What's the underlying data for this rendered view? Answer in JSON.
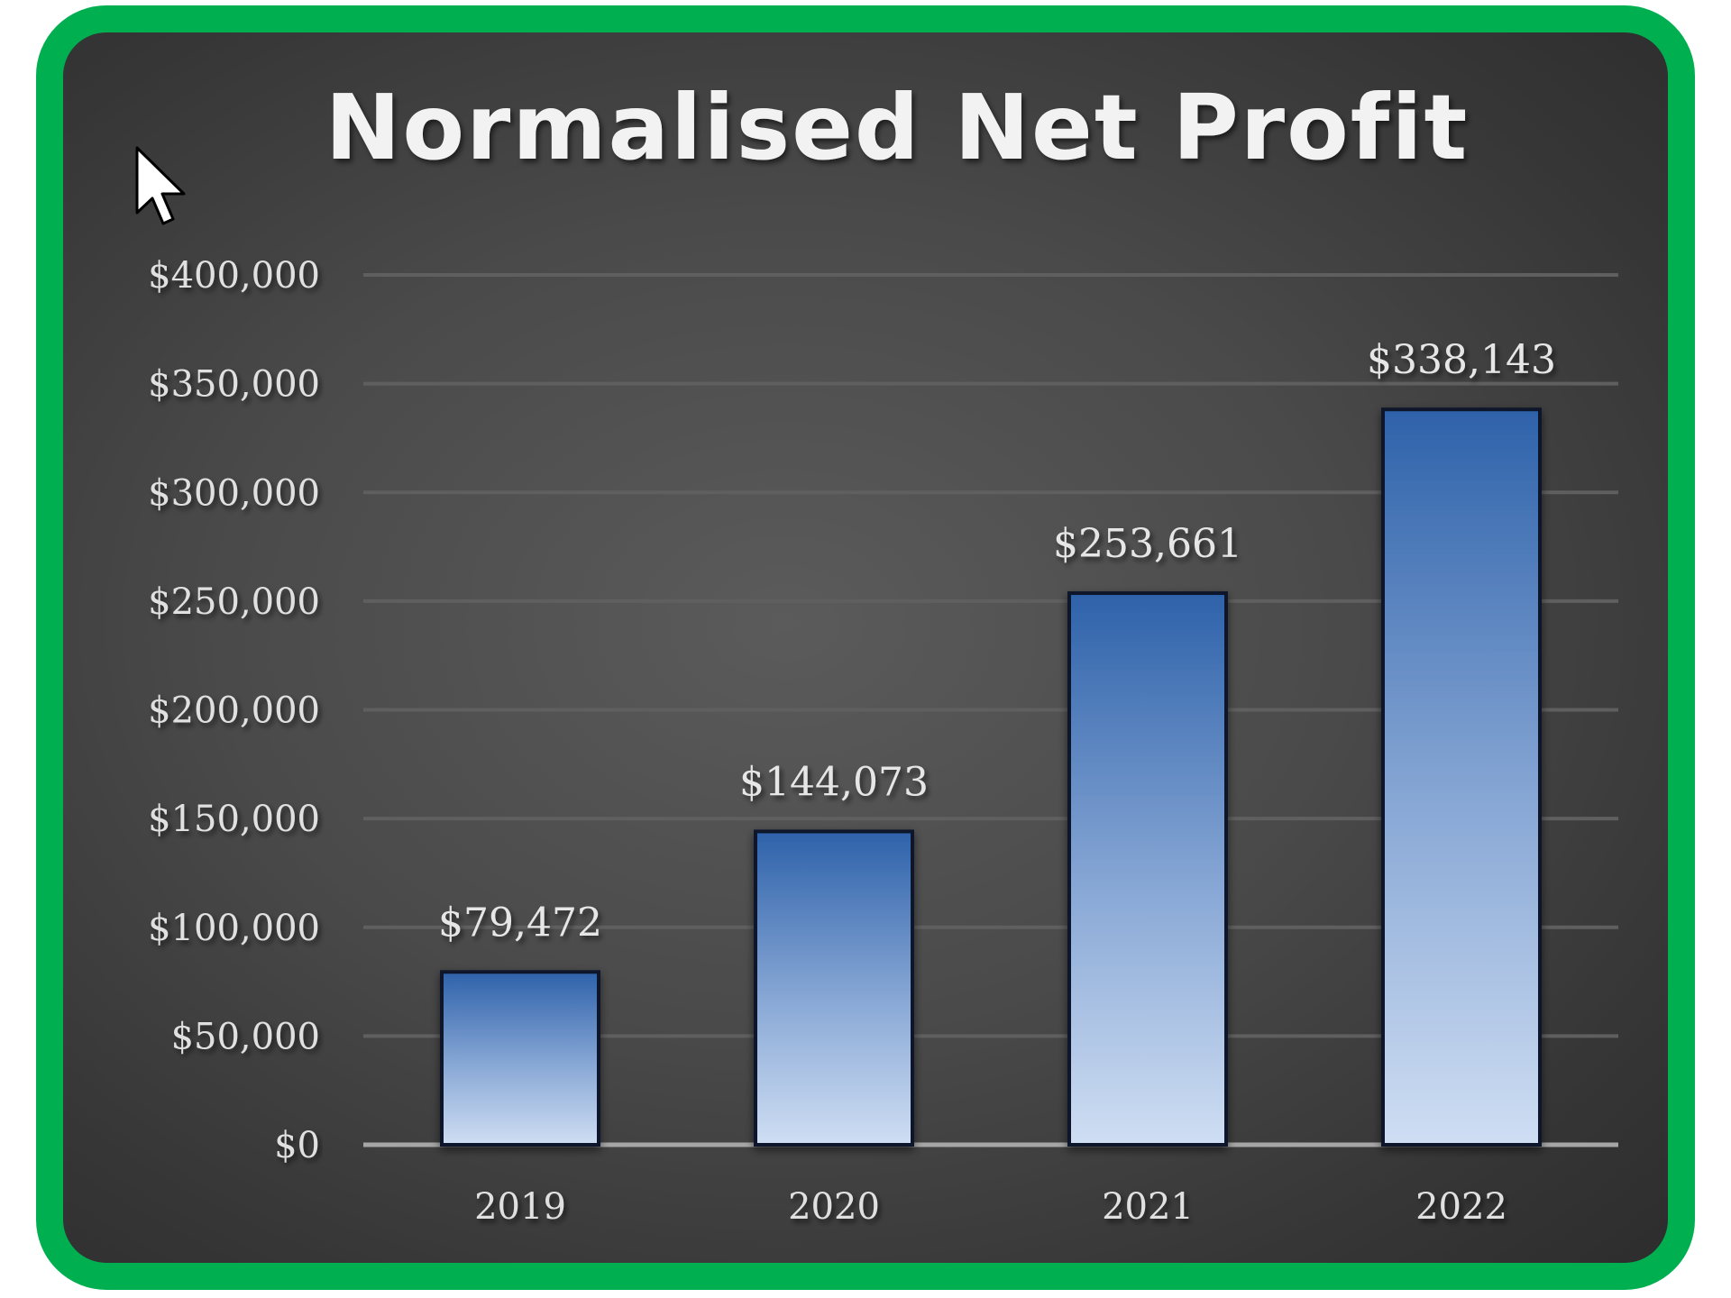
{
  "chart_data": {
    "type": "bar",
    "title": "Normalised Net Profit",
    "categories": [
      "2019",
      "2020",
      "2021",
      "2022"
    ],
    "values": [
      79472,
      144073,
      253661,
      338143
    ],
    "data_labels": [
      "$79,472",
      "$144,073",
      "$253,661",
      "$338,143"
    ],
    "ylim": [
      0,
      400000
    ],
    "y_ticks": [
      0,
      50000,
      100000,
      150000,
      200000,
      250000,
      300000,
      350000,
      400000
    ],
    "y_tick_labels": [
      "$0",
      "$50,000",
      "$100,000",
      "$150,000",
      "$200,000",
      "$250,000",
      "$300,000",
      "$350,000",
      "$400,000"
    ],
    "grid": true,
    "legend": "none",
    "colors": {
      "frame_border": "#00b050",
      "bar_top": "#2e62aa",
      "bar_bottom": "#cfdef3",
      "bar_outline": "#10192b",
      "gridline": "#5f5f5f",
      "baseline": "#a6a6a6"
    }
  },
  "overlay": {
    "cursor": "mouse-pointer-icon"
  }
}
